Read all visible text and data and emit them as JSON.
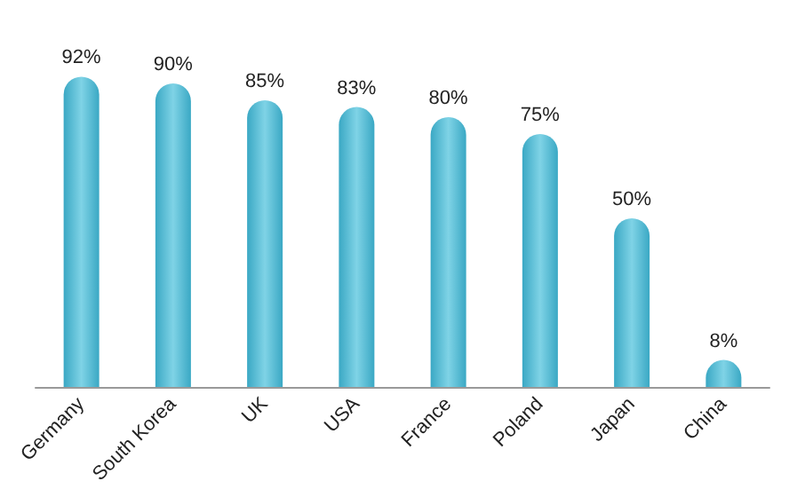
{
  "chart_data": {
    "type": "bar",
    "categories": [
      "Germany",
      "South Korea",
      "UK",
      "USA",
      "France",
      "Poland",
      "Japan",
      "China"
    ],
    "values": [
      92,
      90,
      85,
      83,
      80,
      75,
      50,
      8
    ],
    "value_labels": [
      "92%",
      "90%",
      "85%",
      "83%",
      "80%",
      "75%",
      "50%",
      "8%"
    ],
    "color": "#3aa8c4"
  }
}
